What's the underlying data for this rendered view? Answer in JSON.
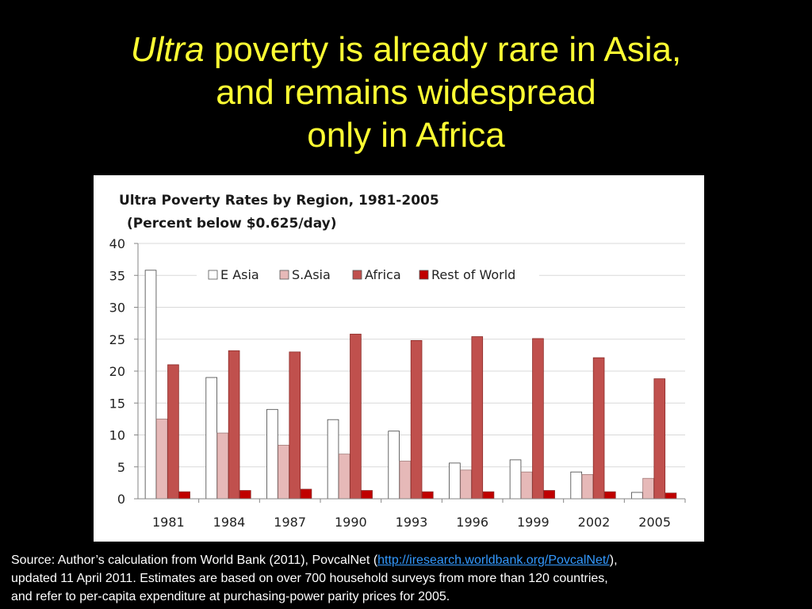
{
  "slide": {
    "title_italic": "Ultra",
    "title_rest": " poverty is already rare in Asia,",
    "title_line2": "and remains widespread",
    "title_line3": "only in Africa"
  },
  "source": {
    "prefix": "Source:  Author’s calculation from World Bank (2011), PovcalNet  (",
    "link_text": "http://iresearch.worldbank.org/PovcalNet/",
    "after_link": "),",
    "line2": "updated 11 April 2011.  Estimates are based on over 700 household surveys from more than 120 countries,",
    "line3": "and refer to per-capita expenditure at purchasing-power parity prices for 2005."
  },
  "chart_data": {
    "type": "bar",
    "title": "Ultra Poverty Rates by Region, 1981-2005",
    "subtitle": "(Percent below $0.625/day)",
    "xlabel": "",
    "ylabel": "",
    "ylim": [
      0,
      40
    ],
    "yticks": [
      "0",
      "5",
      "10",
      "15",
      "20",
      "25",
      "30",
      "35",
      "40"
    ],
    "grid": true,
    "legend_position": "top",
    "categories": [
      "1981",
      "1984",
      "1987",
      "1990",
      "1993",
      "1996",
      "1999",
      "2002",
      "2005"
    ],
    "series": [
      {
        "name": "E Asia",
        "color": "#ffffff",
        "values": [
          35.8,
          19.0,
          14.0,
          12.4,
          10.6,
          5.6,
          6.1,
          4.2,
          1.0
        ]
      },
      {
        "name": "S.Asia",
        "color": "#e6b9b8",
        "values": [
          12.5,
          10.3,
          8.4,
          7.0,
          5.9,
          4.5,
          4.2,
          3.8,
          3.2
        ]
      },
      {
        "name": "Africa",
        "color": "#c0504d",
        "values": [
          21.0,
          23.2,
          23.0,
          25.8,
          24.8,
          25.4,
          25.1,
          22.1,
          18.8
        ]
      },
      {
        "name": "Rest of World",
        "color": "#c00000",
        "values": [
          1.1,
          1.3,
          1.5,
          1.3,
          1.1,
          1.1,
          1.3,
          1.1,
          0.9
        ]
      }
    ]
  }
}
